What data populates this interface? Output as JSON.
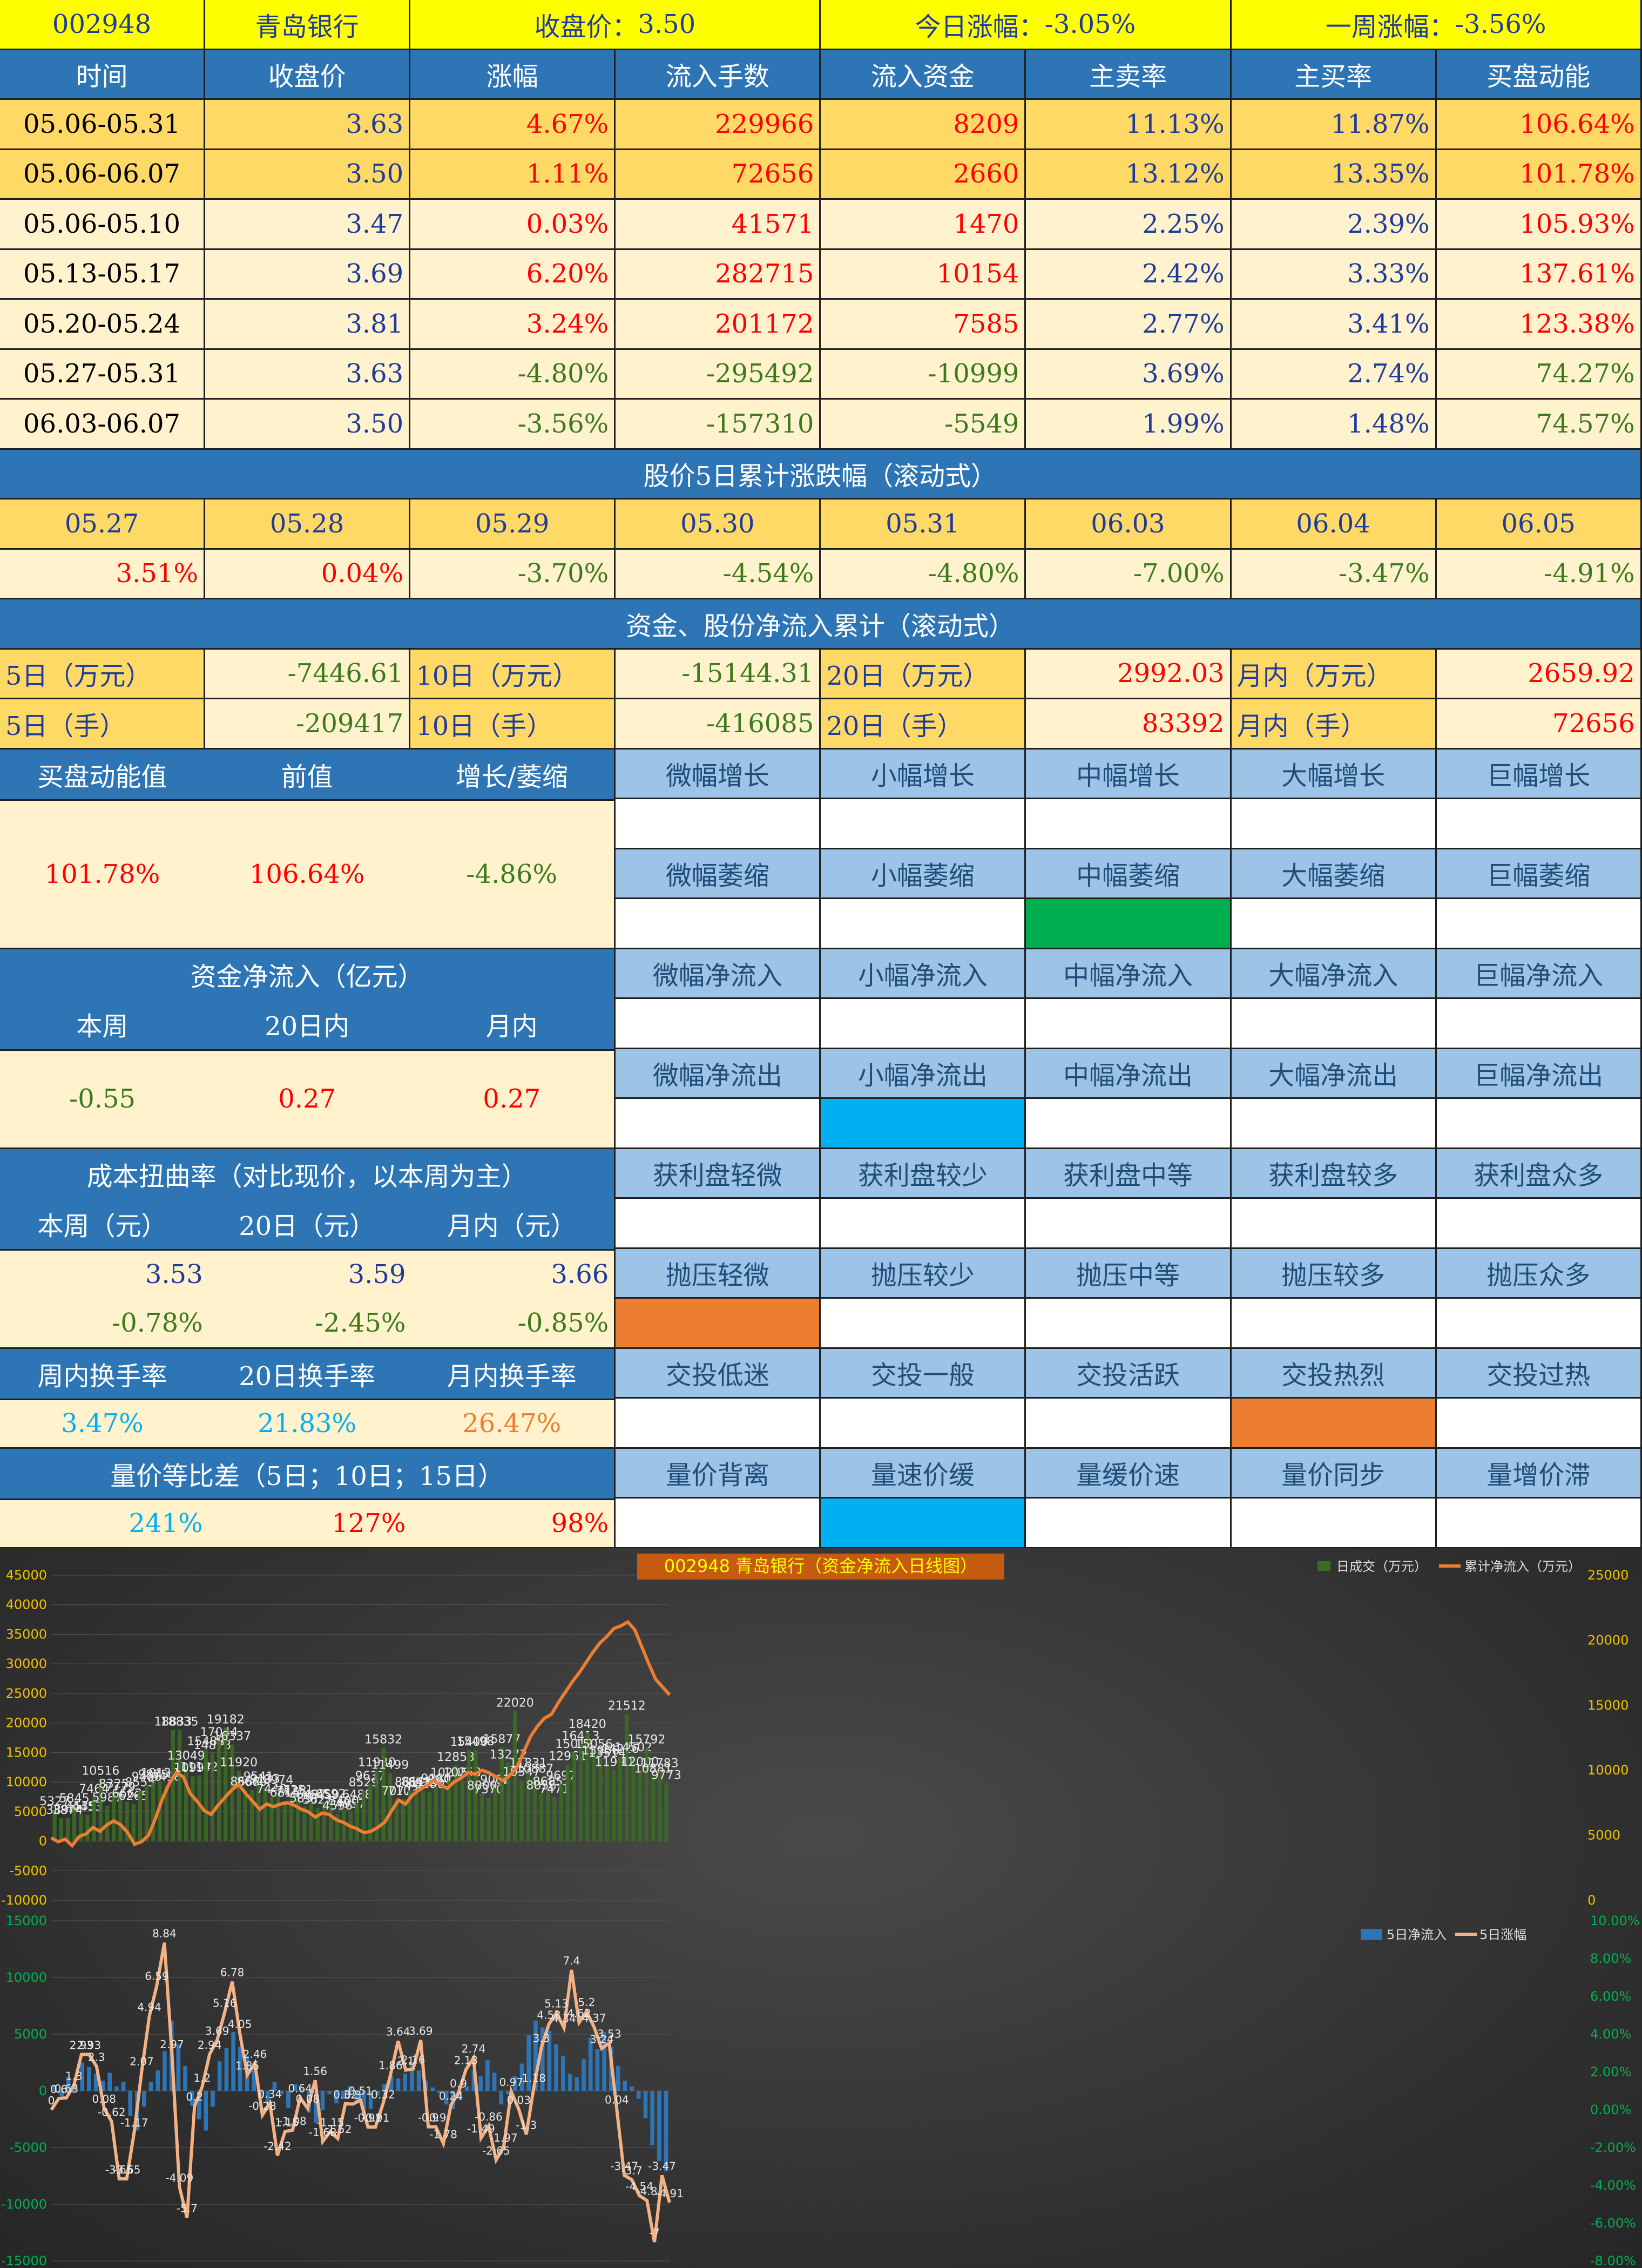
{
  "header": {
    "code": "002948",
    "name": "青岛银行",
    "close_label": "收盘价：",
    "close_value": "3.50",
    "today_label": "今日涨幅：",
    "today_value": "-3.05%",
    "week_label": "一周涨幅：",
    "week_value": "-3.56%"
  },
  "weekly": {
    "columns": [
      "时间",
      "收盘价",
      "涨幅",
      "流入手数",
      "流入资金",
      "主卖率",
      "主买率",
      "买盘动能"
    ],
    "rows": [
      [
        "05.06-05.31",
        "3.63",
        "4.67%",
        "229966",
        "8209",
        "11.13%",
        "11.87%",
        "106.64%"
      ],
      [
        "05.06-06.07",
        "3.50",
        "1.11%",
        "72656",
        "2660",
        "13.12%",
        "13.35%",
        "101.78%"
      ],
      [
        "05.06-05.10",
        "3.47",
        "0.03%",
        "41571",
        "1470",
        "2.25%",
        "2.39%",
        "105.93%"
      ],
      [
        "05.13-05.17",
        "3.69",
        "6.20%",
        "282715",
        "10154",
        "2.42%",
        "3.33%",
        "137.61%"
      ],
      [
        "05.20-05.24",
        "3.81",
        "3.24%",
        "201172",
        "7585",
        "2.77%",
        "3.41%",
        "123.38%"
      ],
      [
        "05.27-05.31",
        "3.63",
        "-4.80%",
        "-295492",
        "-10999",
        "3.69%",
        "2.74%",
        "74.27%"
      ],
      [
        "06.03-06.07",
        "3.50",
        "-3.56%",
        "-157310",
        "-5549",
        "1.99%",
        "1.48%",
        "74.57%"
      ]
    ]
  },
  "rolling5": {
    "title": "股价5日累计涨跌幅（滚动式）",
    "dates": [
      "05.27",
      "05.28",
      "05.29",
      "05.30",
      "05.31",
      "06.03",
      "06.04",
      "06.05"
    ],
    "values": [
      "3.51%",
      "0.04%",
      "-3.70%",
      "-4.54%",
      "-4.80%",
      "-7.00%",
      "-3.47%",
      "-4.91%"
    ]
  },
  "cumulative": {
    "title": "资金、股份净流入累计（滚动式）",
    "row1": [
      [
        "5日（万元）",
        "-7446.61"
      ],
      [
        "10日（万元）",
        "-15144.31"
      ],
      [
        "20日（万元）",
        "2992.03"
      ],
      [
        "月内（万元）",
        "2659.92"
      ]
    ],
    "row2": [
      [
        "5日（手）",
        "-209417"
      ],
      [
        "10日（手）",
        "-416085"
      ],
      [
        "20日（手）",
        "83392"
      ],
      [
        "月内（手）",
        "72656"
      ]
    ]
  },
  "momentum": {
    "headers": [
      "买盘动能值",
      "前值",
      "增长/萎缩"
    ],
    "values": [
      "101.78%",
      "106.64%",
      "-4.86%"
    ],
    "grow": [
      "微幅增长",
      "小幅增长",
      "中幅增长",
      "大幅增长",
      "巨幅增长"
    ],
    "shrink": [
      "微幅萎缩",
      "小幅萎缩",
      "中幅萎缩",
      "大幅萎缩",
      "巨幅萎缩"
    ]
  },
  "netflow": {
    "title": "资金净流入（亿元）",
    "headers": [
      "本周",
      "20日内",
      "月内"
    ],
    "values": [
      "-0.55",
      "0.27",
      "0.27"
    ],
    "inflow": [
      "微幅净流入",
      "小幅净流入",
      "中幅净流入",
      "大幅净流入",
      "巨幅净流入"
    ],
    "outflow": [
      "微幅净流出",
      "小幅净流出",
      "中幅净流出",
      "大幅净流出",
      "巨幅净流出"
    ]
  },
  "cost": {
    "title": "成本扭曲率（对比现价，以本周为主）",
    "headers": [
      "本周（元）",
      "20日（元）",
      "月内（元）"
    ],
    "prices": [
      "3.53",
      "3.59",
      "3.66"
    ],
    "rates": [
      "-0.78%",
      "-2.45%",
      "-0.85%"
    ],
    "profit": [
      "获利盘轻微",
      "获利盘较少",
      "获利盘中等",
      "获利盘较多",
      "获利盘众多"
    ],
    "pressure": [
      "抛压轻微",
      "抛压较少",
      "抛压中等",
      "抛压较多",
      "抛压众多"
    ]
  },
  "turnover": {
    "headers": [
      "周内换手率",
      "20日换手率",
      "月内换手率"
    ],
    "values": [
      "3.47%",
      "21.83%",
      "26.47%"
    ],
    "levels": [
      "交投低迷",
      "交投一般",
      "交投活跃",
      "交投热烈",
      "交投过热"
    ]
  },
  "volprice": {
    "title": "量价等比差（5日；10日；15日）",
    "values": [
      "241%",
      "127%",
      "98%"
    ],
    "levels": [
      "量价背离",
      "量速价缓",
      "量缓价速",
      "量价同步",
      "量增价滞"
    ]
  },
  "chart_data": [
    {
      "type": "bar+line",
      "title": "002948 青岛银行（资金净流入日线图）",
      "legend": [
        "日成交（万元）",
        "累计净流入（万元）"
      ],
      "legend_position": "top-right",
      "y_left": {
        "ticks": [
          -10000,
          -5000,
          0,
          5000,
          10000,
          15000,
          20000,
          25000,
          30000,
          35000,
          40000,
          45000
        ],
        "range": [
          -10000,
          45000
        ]
      },
      "y_right": {
        "ticks": [
          0,
          5000,
          10000,
          15000,
          20000,
          25000
        ],
        "range": [
          0,
          25000
        ]
      },
      "series": [
        {
          "name": "日成交（万元）",
          "color": "#2e5b1f",
          "values": [
            5327,
            3894,
            3874,
            5845,
            4535,
            4453,
            7464,
            10516,
            5987,
            8325,
            7779,
            6662,
            6265,
            8555,
            9486,
            9875,
            10137,
            9498,
            18833,
            18835,
            13049,
            10997,
            11142,
            15488,
            14873,
            17044,
            19182,
            16337,
            11920,
            8682,
            8660,
            9541,
            9133,
            7440,
            8974,
            6815,
            7128,
            7251,
            5857,
            6487,
            5621,
            6459,
            6592,
            4596,
            5400,
            4957,
            6488,
            8529,
            9637,
            11930,
            15832,
            11499,
            7077,
            7103,
            8611,
            8641,
            8525,
            8280,
            9180,
            8942,
            10205,
            12853,
            10253,
            15400,
            15498,
            8000,
            7370,
            9002,
            15877,
            13272,
            22020,
            10347,
            11831,
            10887,
            8056,
            8685,
            7471,
            9697,
            12961,
            15012,
            16413,
            18420,
            15056,
            13956,
            13514,
            11990,
            14226,
            21512,
            14502,
            12000,
            15792,
            10881,
            11783,
            9773
          ]
        },
        {
          "name": "累计净流入（万元）",
          "color": "#ed7d31",
          "values": [
            4800,
            4500,
            4700,
            4200,
            4900,
            5100,
            5600,
            5300,
            5800,
            6100,
            5800,
            5200,
            4300,
            4500,
            5000,
            6300,
            7800,
            9000,
            9800,
            9500,
            8200,
            7600,
            6900,
            6600,
            7300,
            7900,
            8500,
            8900,
            8200,
            7600,
            7000,
            7400,
            7200,
            7400,
            7500,
            7300,
            7000,
            6800,
            6400,
            6700,
            6600,
            6200,
            6000,
            5700,
            5500,
            5200,
            5300,
            5600,
            6000,
            6900,
            7700,
            7400,
            8100,
            8500,
            8800,
            9200,
            8900,
            8600,
            9100,
            9400,
            9800,
            9700,
            10000,
            9800,
            9500,
            9200,
            9600,
            10200,
            11400,
            12600,
            13400,
            14000,
            14300,
            15200,
            16000,
            16800,
            17500,
            18300,
            19100,
            19800,
            20300,
            20900,
            21100,
            21400,
            20800,
            19500,
            18200,
            17000,
            16400,
            15800
          ]
        }
      ]
    },
    {
      "type": "bar+line",
      "legend": [
        "5日净流入",
        "5日涨幅"
      ],
      "legend_position": "top-right",
      "y_left": {
        "ticks": [
          -15000,
          -10000,
          -5000,
          0,
          5000,
          10000,
          15000
        ],
        "range": [
          -15000,
          15000
        ]
      },
      "y_right": {
        "ticks": [
          "-8.00%",
          "-6.00%",
          "-4.00%",
          "-2.00%",
          "0.00%",
          "2.00%",
          "4.00%",
          "6.00%",
          "8.00%",
          "10.00%"
        ],
        "range": [
          -8,
          10
        ]
      },
      "series": [
        {
          "name": "5日净流入",
          "color": "#2e75b6",
          "values": [
            500,
            -500,
            1200,
            600,
            2500,
            2100,
            1500,
            900,
            1600,
            400,
            800,
            -2200,
            -3500,
            -1400,
            800,
            1800,
            3500,
            6200,
            4100,
            2200,
            -1300,
            -2500,
            -3500,
            -1400,
            2600,
            3800,
            5200,
            3900,
            3100,
            1800,
            -500,
            -1200,
            800,
            -300,
            -1500,
            600,
            200,
            -1900,
            -2800,
            -1700,
            -300,
            -1100,
            -700,
            400,
            -900,
            -2200,
            -1600,
            -400,
            600,
            1300,
            1100,
            1500,
            2500,
            1800,
            900,
            300,
            -200,
            -1200,
            -1600,
            -800,
            400,
            1800,
            1300,
            2700,
            1600,
            -1200,
            -300,
            1300,
            2400,
            4900,
            6200,
            5600,
            5300,
            4100,
            3100,
            1500,
            1200,
            2800,
            4700,
            3700,
            5200,
            3900,
            2200,
            900,
            400,
            -700,
            -2400,
            -4800,
            -6200,
            -7100
          ]
        },
        {
          "name": "5日涨幅",
          "color": "#f4b183",
          "values": [
            0.0,
            0.6,
            0.63,
            1.3,
            2.93,
            2.93,
            2.3,
            0.08,
            -0.62,
            -3.65,
            -3.65,
            -1.17,
            2.07,
            4.94,
            6.59,
            8.84,
            2.97,
            -4.09,
            -5.7,
            0.2,
            1.2,
            2.94,
            3.69,
            5.16,
            6.78,
            4.05,
            1.85,
            2.46,
            -0.28,
            0.34,
            -2.42,
            -1.15,
            -1.08,
            0.64,
            0.08,
            1.56,
            -1.68,
            -1.15,
            -1.52,
            0.32,
            0.3,
            0.51,
            -0.91,
            -0.91,
            0.32,
            1.86,
            3.64,
            2.1,
            2.16,
            3.69,
            -0.9,
            -0.9,
            -1.78,
            0.24,
            0.9,
            2.13,
            2.74,
            -1.49,
            -0.86,
            -2.65,
            -1.97,
            0.97,
            0.03,
            -1.3,
            1.18,
            3.3,
            4.53,
            5.13,
            4.34,
            7.4,
            4.62,
            5.2,
            4.37,
            3.24,
            3.53,
            0.04,
            -3.47,
            -3.7,
            -4.54,
            -4.8,
            -7.0,
            -3.47,
            -4.91
          ]
        }
      ]
    }
  ]
}
